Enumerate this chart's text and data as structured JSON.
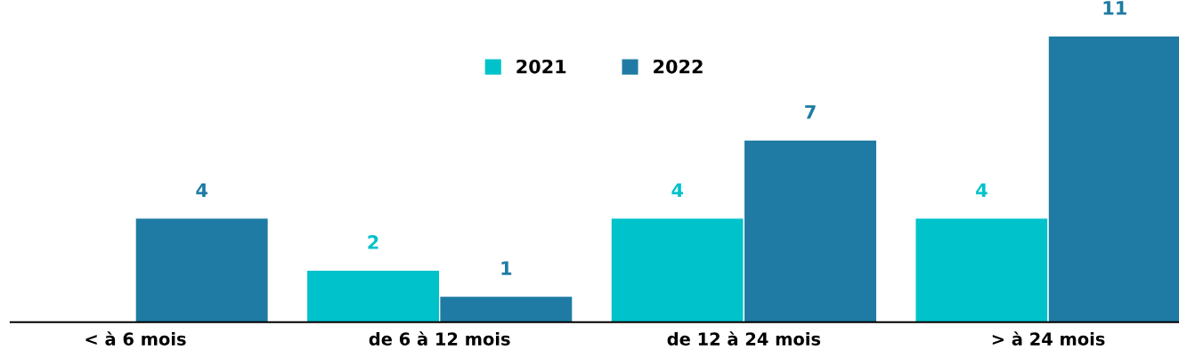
{
  "chart_data": {
    "type": "bar",
    "categories": [
      "< à 6 mois",
      "de 6 à 12 mois",
      "de 12 à 24 mois",
      "> à 24 mois"
    ],
    "series": [
      {
        "name": "2021",
        "color": "#00c2cb",
        "values": [
          null,
          2,
          4,
          4
        ]
      },
      {
        "name": "2022",
        "color": "#1f7ba3",
        "values": [
          4,
          1,
          7,
          11
        ]
      }
    ],
    "data_labels": true,
    "legend": "top",
    "grid": false
  }
}
